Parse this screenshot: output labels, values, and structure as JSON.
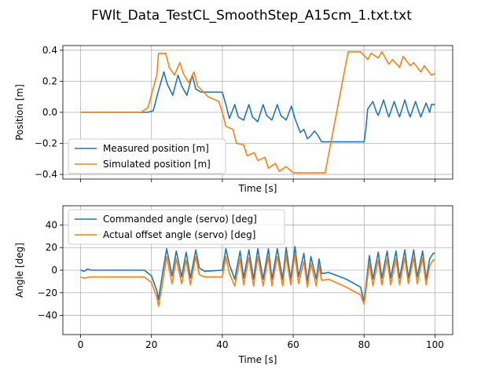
{
  "title": "FWlt_Data_TestCL_SmoothStep_A15cm_1.txt.txt",
  "colors": {
    "blue": "#1f77b4",
    "orange": "#ff7f0e",
    "grid": "#b0b0b0"
  },
  "chart_data": [
    {
      "type": "line",
      "xlabel": "Time [s]",
      "ylabel": "Position [m]",
      "xlim": [
        -5,
        105
      ],
      "ylim": [
        -0.43,
        0.43
      ],
      "xticks": [
        0,
        20,
        40,
        60,
        80,
        100
      ],
      "xtick_labels_visible": false,
      "yticks": [
        -0.4,
        -0.2,
        0.0,
        0.2,
        0.4
      ],
      "ytick_labels": [
        "−0.4",
        "−0.2",
        "0.0",
        "0.2",
        "0.4"
      ],
      "grid": true,
      "legend_position": "lower-left",
      "series": [
        {
          "name": "Measured position [m]",
          "color": "#1f77b4",
          "x": [
            0,
            2,
            19,
            20.5,
            22,
            23.5,
            24.5,
            26,
            27.5,
            28.5,
            30,
            31.5,
            32.5,
            34,
            40,
            41,
            42,
            43.5,
            44.5,
            46,
            47.5,
            48.5,
            50,
            51.5,
            52.5,
            54,
            55.5,
            56.5,
            58,
            59.5,
            60.5,
            62,
            63,
            64,
            65,
            66,
            67,
            68,
            70,
            80,
            80.5,
            81,
            82.5,
            83.5,
            84,
            85.5,
            86.5,
            87,
            88.5,
            89.5,
            90,
            91.5,
            92.5,
            93,
            94.5,
            95.5,
            96,
            97.5,
            98.5,
            99,
            100
          ],
          "y": [
            0.0,
            0.0,
            0.0,
            0.01,
            0.14,
            0.26,
            0.18,
            0.11,
            0.24,
            0.17,
            0.11,
            0.24,
            0.15,
            0.13,
            0.13,
            0.05,
            -0.04,
            0.05,
            -0.03,
            -0.05,
            0.05,
            -0.03,
            -0.06,
            0.05,
            -0.02,
            -0.05,
            0.05,
            -0.02,
            -0.05,
            0.04,
            -0.04,
            -0.13,
            -0.11,
            -0.17,
            -0.15,
            -0.12,
            -0.15,
            -0.19,
            -0.19,
            -0.19,
            -0.11,
            0.02,
            0.07,
            0.0,
            -0.02,
            0.08,
            0.0,
            -0.03,
            0.07,
            0.0,
            -0.03,
            0.08,
            0.0,
            -0.03,
            0.07,
            0.0,
            -0.03,
            0.06,
            0.0,
            0.05,
            0.05
          ]
        },
        {
          "name": "Simulated position [m]",
          "color": "#ff7f0e",
          "x": [
            0,
            17,
            19,
            21.5,
            22,
            24,
            25,
            26.5,
            28,
            29,
            30.5,
            32,
            33,
            36,
            39,
            40,
            41,
            43,
            44,
            46,
            47,
            49,
            50,
            52,
            53,
            55,
            56,
            58,
            59.5,
            60,
            62,
            69,
            75.5,
            76,
            78,
            79,
            81,
            82,
            84,
            85,
            87,
            88,
            90,
            91,
            93,
            94,
            96,
            97,
            99,
            100
          ],
          "y": [
            0.0,
            0.0,
            0.03,
            0.24,
            0.38,
            0.38,
            0.29,
            0.24,
            0.32,
            0.25,
            0.19,
            0.26,
            0.17,
            0.1,
            0.07,
            0.0,
            -0.09,
            -0.11,
            -0.2,
            -0.21,
            -0.28,
            -0.26,
            -0.31,
            -0.29,
            -0.36,
            -0.33,
            -0.38,
            -0.35,
            -0.38,
            -0.39,
            -0.39,
            -0.39,
            0.39,
            0.39,
            0.39,
            0.39,
            0.34,
            0.38,
            0.35,
            0.39,
            0.31,
            0.34,
            0.29,
            0.36,
            0.3,
            0.32,
            0.26,
            0.3,
            0.24,
            0.25
          ]
        }
      ]
    },
    {
      "type": "line",
      "xlabel": "Time [s]",
      "ylabel": "Angle [deg]",
      "xlim": [
        -5,
        105
      ],
      "ylim": [
        -57,
        57
      ],
      "xticks": [
        0,
        20,
        40,
        60,
        80,
        100
      ],
      "xtick_labels": [
        "0",
        "20",
        "40",
        "60",
        "80",
        "100"
      ],
      "yticks": [
        -40,
        -20,
        0,
        20,
        40
      ],
      "ytick_labels": [
        "−40",
        "−20",
        "0",
        "20",
        "40"
      ],
      "grid": true,
      "legend_position": "upper-left",
      "series": [
        {
          "name": "Commanded angle (servo) [deg]",
          "color": "#1f77b4",
          "x": [
            0,
            1,
            2,
            3,
            18,
            20,
            21.5,
            22,
            23,
            24.3,
            25.8,
            27,
            28.5,
            29.8,
            31,
            32.5,
            33.5,
            35,
            40,
            41,
            42,
            43.5,
            45,
            46,
            47.5,
            48.8,
            50,
            51.5,
            53,
            54,
            55.5,
            57,
            58,
            59.3,
            60.5,
            61.5,
            63,
            64,
            65,
            66.5,
            67.3,
            68,
            70,
            75,
            79,
            80,
            81.5,
            82.5,
            84,
            85,
            86.5,
            87.5,
            89,
            90,
            91.5,
            92.5,
            94,
            95,
            96.5,
            97.5,
            98.5,
            99.5,
            100
          ],
          "y": [
            0,
            -1,
            1,
            0,
            0,
            -5,
            -18,
            -26,
            -5,
            19,
            -5,
            17,
            -6,
            16,
            -7,
            18,
            2,
            -1,
            0,
            19,
            5,
            -8,
            17,
            -7,
            18,
            -8,
            19,
            -8,
            19,
            -8,
            19,
            -8,
            20,
            -8,
            21,
            -6,
            15,
            -10,
            12,
            -8,
            10,
            -3,
            -2,
            -8,
            -15,
            -28,
            13,
            -8,
            16,
            -7,
            17,
            -7,
            17,
            -7,
            18,
            -7,
            18,
            -6,
            17,
            -8,
            10,
            15,
            15
          ]
        },
        {
          "name": "Actual offset angle (servo) [deg]",
          "color": "#ff7f0e",
          "x": [
            0,
            1,
            3,
            18,
            20,
            21.5,
            22,
            23,
            24.3,
            25.8,
            27,
            28.5,
            29.8,
            31,
            32.5,
            33.5,
            35,
            40,
            41,
            42,
            43.5,
            45,
            46,
            47.5,
            48.8,
            50,
            51.5,
            53,
            54,
            55.5,
            57,
            58,
            59.3,
            60.5,
            61.5,
            63,
            64,
            65,
            66.5,
            67.3,
            68,
            70,
            75,
            79,
            80,
            81.5,
            82.5,
            84,
            85,
            86.5,
            87.5,
            89,
            90,
            91.5,
            92.5,
            94,
            95,
            96.5,
            97.5,
            98.5,
            99.5,
            100
          ],
          "y": [
            -6,
            -7,
            -6,
            -6,
            -11,
            -24,
            -32,
            -14,
            12,
            -12,
            10,
            -12,
            9,
            -13,
            12,
            -4,
            -6,
            -6,
            12,
            -3,
            -14,
            10,
            -13,
            11,
            -14,
            12,
            -14,
            12,
            -14,
            12,
            -14,
            13,
            -13,
            14,
            -12,
            8,
            -15,
            6,
            -14,
            4,
            -9,
            -8,
            -15,
            -22,
            -30,
            6,
            -14,
            9,
            -13,
            10,
            -13,
            10,
            -13,
            11,
            -12,
            11,
            -12,
            11,
            -13,
            4,
            9,
            9
          ]
        }
      ]
    }
  ]
}
